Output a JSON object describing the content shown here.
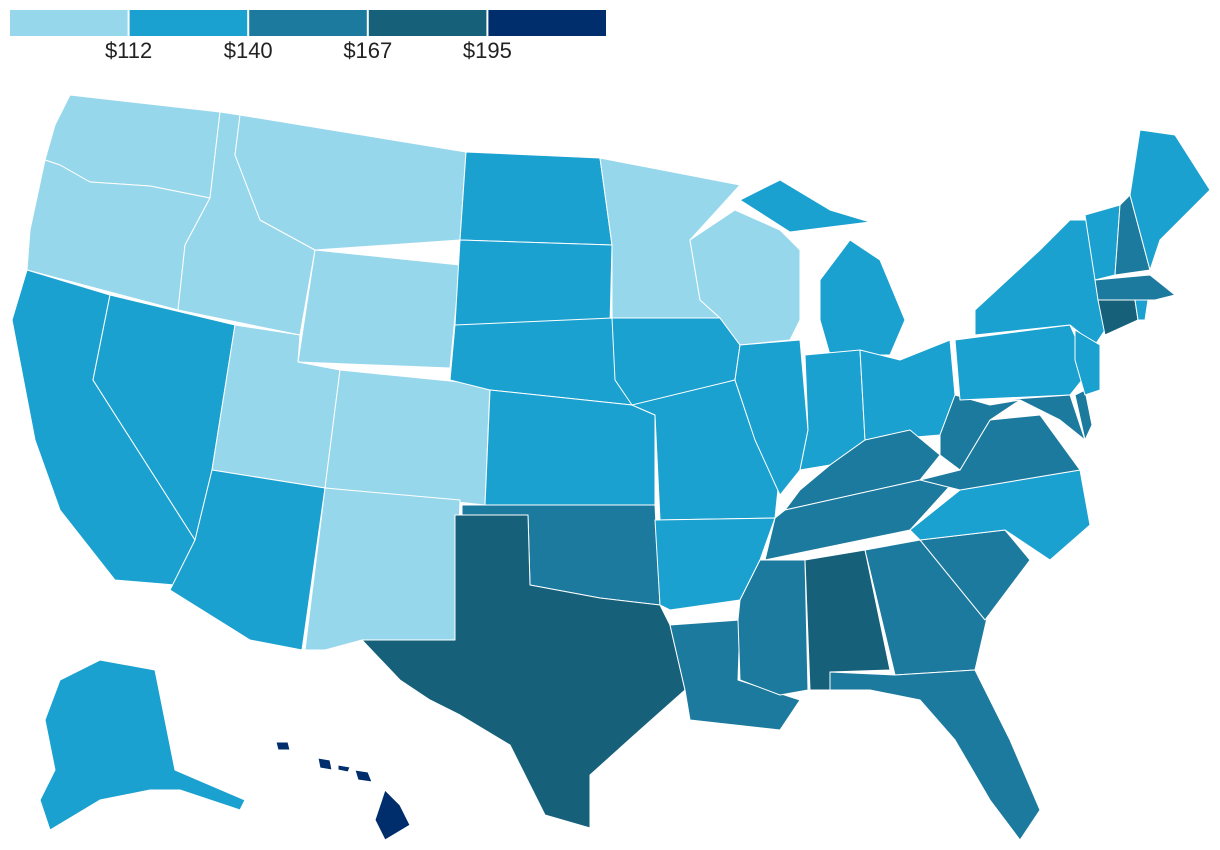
{
  "chart_data": {
    "type": "choropleth",
    "colors": [
      "#97d7ec",
      "#1aa1cf",
      "#1c7a9e",
      "#16607a",
      "#002d6b"
    ],
    "legend_ticks": [
      {
        "value": 112,
        "label": "$112"
      },
      {
        "value": 140,
        "label": "$140"
      },
      {
        "value": 167,
        "label": "$167"
      },
      {
        "value": 195,
        "label": "$195"
      }
    ],
    "values": [
      100,
      100,
      126,
      126,
      100,
      100,
      100,
      100,
      100,
      126,
      100,
      126,
      126,
      126,
      126,
      154,
      181,
      100,
      126,
      126,
      126,
      154,
      100,
      126,
      126,
      126,
      126,
      154,
      154,
      154,
      181,
      154,
      154,
      154,
      126,
      154,
      154,
      126,
      126,
      154,
      154,
      126,
      126,
      154,
      126,
      154,
      181,
      126,
      126,
      210
    ]
  }
}
